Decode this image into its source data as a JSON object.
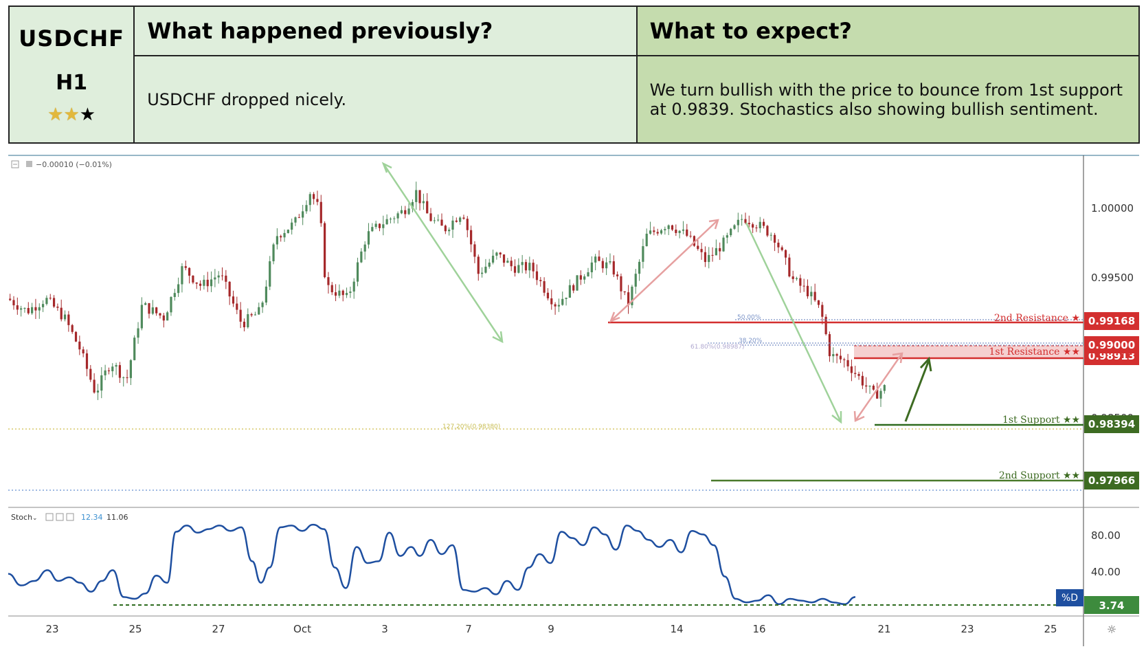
{
  "header": {
    "symbol": "USDCHF",
    "timeframe": "H1",
    "rating": {
      "filled": 2,
      "total": 3
    },
    "prev_title": "What happened previously?",
    "next_title": "What to expect?",
    "prev_text": "USDCHF dropped nicely.",
    "next_text": "We turn bullish with the price to bounce from 1st support at 0.9839. Stochastics also showing bullish sentiment."
  },
  "chart_data": {
    "type": "candlestick",
    "top_legend": "−0.00010 (−0.01%)",
    "price_axis": {
      "ticks": [
        "1.00000",
        "0.99500",
        "0.98500"
      ],
      "ylim": [
        0.976,
        1.0038
      ]
    },
    "time_axis": {
      "ticks": [
        "23",
        "25",
        "27",
        "Oct",
        "3",
        "7",
        "9",
        "14",
        "16",
        "21",
        "23",
        "25"
      ]
    },
    "price_path": [
      [
        0,
        0.9925
      ],
      [
        0.6,
        0.9915
      ],
      [
        1.2,
        0.9925
      ],
      [
        1.8,
        0.991
      ],
      [
        2.3,
        0.9885
      ],
      [
        2.8,
        0.985
      ],
      [
        3.3,
        0.9875
      ],
      [
        3.8,
        0.986
      ],
      [
        4.3,
        0.992
      ],
      [
        5.0,
        0.991
      ],
      [
        5.6,
        0.995
      ],
      [
        6.2,
        0.9935
      ],
      [
        6.8,
        0.9945
      ],
      [
        7.5,
        0.9905
      ],
      [
        8.1,
        0.9915
      ],
      [
        8.6,
        0.9975
      ],
      [
        9.2,
        0.9985
      ],
      [
        9.7,
        1.001
      ],
      [
        10.0,
        0.9995
      ],
      [
        10.2,
        0.9935
      ],
      [
        10.9,
        0.9925
      ],
      [
        11.5,
        0.9975
      ],
      [
        12.0,
        0.9985
      ],
      [
        12.7,
        0.9995
      ],
      [
        13.1,
        1.001
      ],
      [
        13.5,
        0.999
      ],
      [
        14.0,
        0.998
      ],
      [
        14.6,
        0.9995
      ],
      [
        15.1,
        0.9945
      ],
      [
        15.7,
        0.996
      ],
      [
        16.2,
        0.995
      ],
      [
        16.8,
        0.995
      ],
      [
        17.3,
        0.993
      ],
      [
        17.6,
        0.992
      ],
      [
        18.3,
        0.994
      ],
      [
        18.8,
        0.9955
      ],
      [
        19.4,
        0.995
      ],
      [
        19.9,
        0.992
      ],
      [
        20.5,
        0.9975
      ],
      [
        21.2,
        0.9985
      ],
      [
        21.8,
        0.9975
      ],
      [
        22.4,
        0.9955
      ],
      [
        23.0,
        0.997
      ],
      [
        23.6,
        0.999
      ],
      [
        24.0,
        0.9985
      ],
      [
        24.6,
        0.9975
      ],
      [
        25.2,
        0.994
      ],
      [
        25.7,
        0.993
      ],
      [
        26.1,
        0.9915
      ],
      [
        26.4,
        0.988
      ],
      [
        26.9,
        0.9875
      ],
      [
        27.4,
        0.986
      ],
      [
        27.8,
        0.9848
      ],
      [
        28.2,
        0.9855
      ]
    ],
    "levels": [
      {
        "label": "2nd Resistance ★",
        "value": 0.99168,
        "value_label": "0.99168",
        "color": "#d32f2f"
      },
      {
        "label": "1st Resistance ★★",
        "value": 0.98913,
        "value_label": "0.98913",
        "color": "#d32f2f"
      },
      {
        "label": "",
        "value": 0.99,
        "value_label": "0.99000",
        "color": "#d32f2f"
      },
      {
        "label": "1st Support ★★",
        "value": 0.98394,
        "value_label": "0.98394",
        "color": "#4a7a2b"
      },
      {
        "label": "2nd Support ★★",
        "value": 0.97966,
        "value_label": "0.97966",
        "color": "#4a7a2b"
      }
    ],
    "fib_labels": [
      "50.00%",
      "38.20%",
      "61.80%(0.98987)",
      "127.20%(0.98380)"
    ],
    "stochastic": {
      "label": "Stoch",
      "k": "12.34",
      "d": "11.06",
      "axis_ticks": [
        "80.00",
        "40.00"
      ],
      "ylim": [
        0,
        100
      ],
      "d_label": "%D",
      "last_value": "3.74",
      "values": [
        [
          0,
          38
        ],
        [
          0.6,
          25
        ],
        [
          1.2,
          30
        ],
        [
          1.8,
          42
        ],
        [
          2.3,
          30
        ],
        [
          2.8,
          34
        ],
        [
          3.3,
          28
        ],
        [
          3.8,
          18
        ],
        [
          4.3,
          30
        ],
        [
          4.8,
          42
        ],
        [
          5.3,
          12
        ],
        [
          5.8,
          10
        ],
        [
          6.3,
          16
        ],
        [
          6.8,
          36
        ],
        [
          7.3,
          28
        ],
        [
          7.7,
          85
        ],
        [
          8.2,
          92
        ],
        [
          8.7,
          84
        ],
        [
          9.2,
          88
        ],
        [
          9.7,
          92
        ],
        [
          10.2,
          86
        ],
        [
          10.7,
          90
        ],
        [
          11.2,
          52
        ],
        [
          11.6,
          28
        ],
        [
          12.0,
          45
        ],
        [
          12.5,
          90
        ],
        [
          13.0,
          92
        ],
        [
          13.5,
          86
        ],
        [
          14.0,
          93
        ],
        [
          14.5,
          88
        ],
        [
          15.0,
          45
        ],
        [
          15.5,
          22
        ],
        [
          16.0,
          68
        ],
        [
          16.5,
          50
        ],
        [
          17.0,
          52
        ],
        [
          17.5,
          84
        ],
        [
          18.0,
          58
        ],
        [
          18.5,
          68
        ],
        [
          18.9,
          58
        ],
        [
          19.4,
          76
        ],
        [
          19.9,
          60
        ],
        [
          20.4,
          70
        ],
        [
          20.9,
          20
        ],
        [
          21.4,
          18
        ],
        [
          21.9,
          22
        ],
        [
          22.4,
          15
        ],
        [
          22.9,
          30
        ],
        [
          23.4,
          20
        ],
        [
          23.9,
          45
        ],
        [
          24.4,
          60
        ],
        [
          24.9,
          50
        ],
        [
          25.4,
          85
        ],
        [
          25.9,
          78
        ],
        [
          26.4,
          70
        ],
        [
          26.9,
          90
        ],
        [
          27.4,
          82
        ],
        [
          27.9,
          65
        ],
        [
          28.4,
          92
        ],
        [
          28.9,
          86
        ],
        [
          29.4,
          76
        ],
        [
          29.9,
          68
        ],
        [
          30.4,
          76
        ],
        [
          30.9,
          62
        ],
        [
          31.4,
          86
        ],
        [
          31.9,
          82
        ],
        [
          32.4,
          70
        ],
        [
          32.9,
          35
        ],
        [
          33.4,
          10
        ],
        [
          33.9,
          6
        ],
        [
          34.4,
          8
        ],
        [
          34.9,
          14
        ],
        [
          35.4,
          4
        ],
        [
          35.9,
          10
        ],
        [
          36.4,
          8
        ],
        [
          36.9,
          6
        ],
        [
          37.4,
          10
        ],
        [
          37.9,
          6
        ],
        [
          38.4,
          4
        ],
        [
          38.9,
          12
        ]
      ]
    },
    "colors": {
      "bull": "#4f8a5c",
      "bear": "#a5282a",
      "stoch": "#1e4fa0",
      "resistance": "#d32f2f",
      "support": "#4a7a2b"
    }
  }
}
